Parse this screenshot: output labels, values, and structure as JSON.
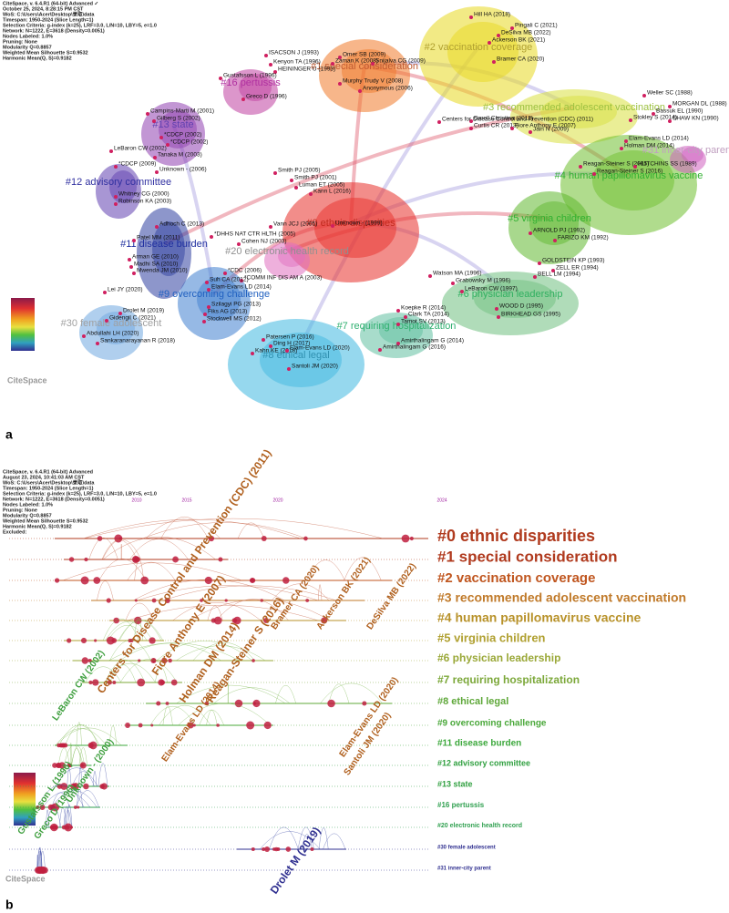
{
  "panel_a": {
    "label": "a",
    "logo": "CiteSpace",
    "header": [
      "CiteSpace, v. 6.4.R1 (64-bit) Advanced ✓",
      "October 25, 2024, 8:28:15 PM CST",
      "WoS: C:\\Users\\Acer\\Desktop\\录取\\data",
      "Timespan: 1950-2024 (Slice Length=1)",
      "Selection Criteria: g-index (k=25), LRF=3.0, L/N=10, LBY=5, e=1.0",
      "Network: N=1222, E=3618 (Density=0.0051)",
      "Nodes Labeled: 1.0%",
      "Pruning: None",
      "Modularity Q=0.8857",
      "Weighted Mean Silhouette S=0.9532",
      "Harmonic Mean(Q, S)=0.9182"
    ],
    "clusters": [
      "#0 ethnic disparities",
      "#1 special consideration",
      "#2 vaccination coverage",
      "#3 recommended adolescent vaccination",
      "#4 human papillomavirus vaccine",
      "#5 virginia children",
      "#6 physician leadership",
      "#7 requiring hospitalization",
      "#8 ethical legal",
      "#9 overcoming challenge",
      "#11 disease burden",
      "#12 advisory committee",
      "#13 state",
      "#16 pertussis",
      "#20 electronic health record",
      "#30 female adolescent",
      "#31 inner-city parent"
    ],
    "nodes": [
      "Hill HA (2018)",
      "Pingali C (2021)",
      "DeSilva MB (2022)",
      "Ackerson BK (2021)",
      "Bramer CA (2020)",
      "ISACSON J (1993)",
      "Kenyon TA (1996)",
      "HEININGER U (1993)",
      "Gustafsson L (1996)",
      "Greco D (1996)",
      "Omer SB (2009)",
      "Zaman K (2008)",
      "Snijalva CG (2009)",
      "Murphy Trudy V (2008)",
      "Anonymous (2006)",
      "Campins-Marti M (2001)",
      "Gilberg S (2002)",
      "*CDCP (2002)",
      "*CDCP (2002)",
      "LeBaron CW (2002)",
      "Tanaka M (2003)",
      "*CDCP (2009)",
      "Unknown - (2006)",
      "Whitney CG (2000)",
      "Robinson KA (2003)",
      "Darell Christina (2012)",
      "Curtis CR (2013)",
      "Fiore Anthony E (2007)",
      "Centers for Disease Control and Prevention (CDC) (2011)",
      "Jain N (2009)",
      "Weller SC (1988)",
      "MORGAN DL (1988)",
      "Bassuk EL (1990)",
      "Stokley S (2014)",
      "SHAW KN (1990)",
      "Elam-Evans LD (2014)",
      "Holman DM (2014)",
      "Reagan-Steiner S (2015)",
      "HUTCHINS SS (1989)",
      "Reagan-Steiner S (2016)",
      "Smith PJ (2005)",
      "Smith PJ (2001)",
      "Luman ET (2005)",
      "Kann L (2016)",
      "Unknown - (1999)",
      "Adhoch C (2013)",
      "*DHHS NAT CTR HLTH (2005)",
      "Vann JCJ (2005)",
      "Cohen NJ (2003)",
      "Patel MM (2011)",
      "Arman GE (2010)",
      "Madhi SA (2010)",
      "Mwenda JM (2010)",
      "Lei JY (2020)",
      "*CDC (2006)",
      "*COMM INF DIS AM A (2003)",
      "Suh CA (2012)",
      "Elam-Evans LD (2014)",
      "Szilagyi PG (2013)",
      "Fiks AG (2013)",
      "Stockwell MS (2012)",
      "Drolet M (2019)",
      "Gidengil C (2021)",
      "Abdullahi LH (2020)",
      "Sankaranarayanan R (2018)",
      "ARNOLD PJ (1992)",
      "FARIZO KM (1992)",
      "GOLDSTEIN KP (1993)",
      "ZELL ER (1994)",
      "BELL LM (1994)",
      "Watson MA (1996)",
      "Grabowsky M (1996)",
      "LeBaron CW (1997)",
      "WOOD D (1995)",
      "BIRKHEAD GS (1995)",
      "Koepke R (2014)",
      "Clark TA (2014)",
      "Tamot SV (2013)",
      "Amirthalingam G (2014)",
      "Amirthalingam G (2016)",
      "Patersen P (2016)",
      "Ding H (2017)",
      "Kahn KE (2018)",
      "Elam-Evans LD (2020)",
      "Santoli JM (2020)"
    ]
  },
  "panel_b": {
    "label": "b",
    "logo": "CiteSpace",
    "header": [
      "CiteSpace, v. 6.4.R1 (64-bit) Advanced",
      "August 23, 2024, 10:41:03 AM CST",
      "WoS: C:\\Users\\Acer\\Desktop\\录取\\data",
      "Timespan: 1950-2024 (Slice Length=1)",
      "Selection Criteria: g-index (k=25), LRF=3.0, L/N=10, LBY=5, e=1.0",
      "Network: N=1222, E=3618 (Density=0.0051)",
      "Nodes Labeled: 1.0%",
      "Pruning: None",
      "Modularity Q=0.8857",
      "Weighted Mean Silhouette S=0.9532",
      "Harmonic Mean(Q, S)=0.9182",
      "Excluded:"
    ],
    "years": [
      "2010",
      "2015",
      "2020",
      "2024"
    ],
    "clusters": [
      "#0 ethnic disparities",
      "#1 special consideration",
      "#2 vaccination coverage",
      "#3 recommended adolescent vaccination",
      "#4 human papillomavirus vaccine",
      "#5 virginia children",
      "#6 physician leadership",
      "#7 requiring hospitalization",
      "#8 ethical legal",
      "#9 overcoming challenge",
      "#11 disease burden",
      "#12 advisory committee",
      "#13 state",
      "#16 pertussis",
      "#20 electronic health record",
      "#30 female adolescent",
      "#31 inner-city parent"
    ],
    "nodes": [
      "Bramer CA (2020)",
      "Ackerson BK (2021)",
      "DeSilva MB (2022)",
      "Elam-Evans LD (2020)",
      "Santoli JM (2020)",
      "Elam-Evans LD (2014)",
      "LeBaron CW (2002)",
      "Unknown - (2000)",
      "Gustafsson L (1996)",
      "Greco D (1996)",
      "Drolet M (2019)",
      "Centers for Disease Control and Prevention (CDC) (2011)",
      "Fiore Anthony E (2007)",
      "Holman DM (2014)",
      "Reagan-Steiner S (2016)"
    ]
  }
}
